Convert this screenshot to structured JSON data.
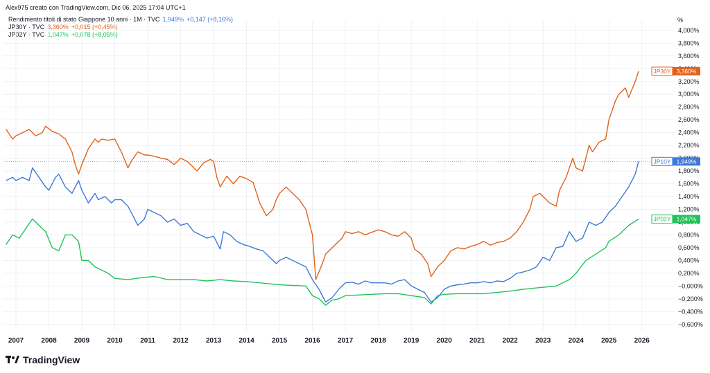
{
  "header": {
    "creator": "Alex975 creato con TradingView.com, Dic 06, 2025 17:04 UTC+1"
  },
  "legend": [
    {
      "label": "Rendimento titoli di stato Giappone 10 anni · 1M · TVC",
      "value": "1,949%",
      "change": "+0,147 (+8,16%)",
      "color": "#3d78d8"
    },
    {
      "label": "JP30Y · TVC",
      "value": "3,360%",
      "change": "+0,015 (+0,45%)",
      "color": "#e2611a"
    },
    {
      "label": "JP02Y · TVC",
      "value": "1,047%",
      "change": "+0,078 (+8,05%)",
      "color": "#22c25a"
    }
  ],
  "axis": {
    "unit": "%"
  },
  "branding": {
    "name": "TradingView"
  },
  "colors": {
    "grid": "#eef0f3",
    "axis_text": "#131722",
    "jp10y": "#3d78d8",
    "jp30y": "#e2611a",
    "jp02y": "#22c25a"
  },
  "chart_data": {
    "type": "line",
    "title": "Rendimento titoli di stato Giappone 10 anni · 1M · TVC",
    "xlabel": "",
    "ylabel": "%",
    "xlim": [
      2006.6,
      2026.3
    ],
    "ylim": [
      -0.7,
      4.15
    ],
    "grid": true,
    "legend_position": "top-left",
    "x_ticks": [
      "2007",
      "2008",
      "2009",
      "2010",
      "2011",
      "2012",
      "2013",
      "2014",
      "2015",
      "2016",
      "2017",
      "2018",
      "2019",
      "2020",
      "2021",
      "2022",
      "2023",
      "2024",
      "2025",
      "2026"
    ],
    "x_tick_values": [
      2007,
      2008,
      2009,
      2010,
      2011,
      2012,
      2013,
      2014,
      2015,
      2016,
      2017,
      2018,
      2019,
      2020,
      2021,
      2022,
      2023,
      2024,
      2025,
      2026
    ],
    "y_ticks": [
      "−0,600%",
      "−0,400%",
      "−0,200%",
      "−0,000%",
      "0,200%",
      "0,400%",
      "0,600%",
      "0,800%",
      "1,000%",
      "1,200%",
      "1,400%",
      "1,600%",
      "1,800%",
      "2,000%",
      "2,200%",
      "2,400%",
      "2,600%",
      "2,800%",
      "3,000%",
      "3,200%",
      "3,400%",
      "3,600%",
      "3,800%",
      "4,000%"
    ],
    "y_tick_values": [
      -0.6,
      -0.4,
      -0.2,
      0.0,
      0.2,
      0.4,
      0.6,
      0.8,
      1.0,
      1.2,
      1.4,
      1.6,
      1.8,
      2.0,
      2.2,
      2.4,
      2.6,
      2.8,
      3.0,
      3.2,
      3.4,
      3.6,
      3.8,
      4.0
    ],
    "series": [
      {
        "name": "JP30Y",
        "tag": "JP30Y",
        "last_label": "3,360%",
        "last": 3.36,
        "color": "#e2611a",
        "x": [
          2006.7,
          2006.9,
          2007.0,
          2007.2,
          2007.4,
          2007.6,
          2007.8,
          2007.9,
          2008.1,
          2008.3,
          2008.5,
          2008.7,
          2008.8,
          2008.9,
          2009.0,
          2009.2,
          2009.4,
          2009.5,
          2009.6,
          2009.8,
          2010.0,
          2010.2,
          2010.4,
          2010.5,
          2010.7,
          2010.9,
          2011.0,
          2011.2,
          2011.4,
          2011.6,
          2011.8,
          2012.0,
          2012.2,
          2012.4,
          2012.5,
          2012.7,
          2012.9,
          2013.0,
          2013.1,
          2013.2,
          2013.4,
          2013.6,
          2013.8,
          2014.0,
          2014.2,
          2014.4,
          2014.6,
          2014.8,
          2014.9,
          2015.0,
          2015.2,
          2015.4,
          2015.6,
          2015.8,
          2016.0,
          2016.1,
          2016.3,
          2016.4,
          2016.6,
          2016.8,
          2016.9,
          2017.0,
          2017.2,
          2017.4,
          2017.6,
          2017.8,
          2018.0,
          2018.2,
          2018.4,
          2018.6,
          2018.8,
          2019.0,
          2019.1,
          2019.3,
          2019.5,
          2019.6,
          2019.8,
          2020.0,
          2020.2,
          2020.4,
          2020.6,
          2020.8,
          2021.0,
          2021.2,
          2021.4,
          2021.6,
          2021.8,
          2022.0,
          2022.2,
          2022.4,
          2022.6,
          2022.7,
          2022.9,
          2023.0,
          2023.2,
          2023.4,
          2023.5,
          2023.7,
          2023.8,
          2023.9,
          2024.0,
          2024.2,
          2024.4,
          2024.5,
          2024.7,
          2024.9,
          2025.0,
          2025.2,
          2025.3,
          2025.5,
          2025.6,
          2025.8,
          2025.9
        ],
        "values": [
          2.45,
          2.3,
          2.35,
          2.4,
          2.45,
          2.35,
          2.4,
          2.5,
          2.42,
          2.38,
          2.3,
          2.1,
          1.9,
          1.75,
          1.9,
          2.15,
          2.3,
          2.25,
          2.3,
          2.28,
          2.3,
          2.1,
          1.85,
          1.95,
          2.1,
          2.05,
          2.05,
          2.03,
          2.0,
          1.98,
          1.9,
          2.0,
          1.95,
          1.85,
          1.8,
          1.93,
          1.98,
          1.95,
          1.7,
          1.55,
          1.72,
          1.6,
          1.72,
          1.68,
          1.62,
          1.3,
          1.1,
          1.2,
          1.35,
          1.45,
          1.55,
          1.45,
          1.35,
          1.2,
          0.8,
          0.1,
          0.35,
          0.5,
          0.6,
          0.7,
          0.75,
          0.85,
          0.82,
          0.85,
          0.8,
          0.84,
          0.88,
          0.85,
          0.8,
          0.78,
          0.85,
          0.75,
          0.58,
          0.5,
          0.35,
          0.15,
          0.3,
          0.4,
          0.55,
          0.6,
          0.58,
          0.62,
          0.65,
          0.7,
          0.64,
          0.68,
          0.7,
          0.75,
          0.85,
          1.0,
          1.2,
          1.4,
          1.45,
          1.4,
          1.3,
          1.25,
          1.5,
          1.7,
          1.85,
          2.0,
          1.85,
          1.8,
          2.2,
          2.1,
          2.25,
          2.3,
          2.6,
          2.9,
          3.0,
          3.1,
          2.95,
          3.2,
          3.36
        ]
      },
      {
        "name": "Rendimento titoli di stato Giappone 10 anni",
        "tag": "JP10Y",
        "last_label": "1,949%",
        "last": 1.949,
        "color": "#3d78d8",
        "x": [
          2006.7,
          2006.9,
          2007.0,
          2007.2,
          2007.4,
          2007.5,
          2007.7,
          2007.9,
          2008.0,
          2008.2,
          2008.3,
          2008.5,
          2008.7,
          2008.9,
          2009.0,
          2009.2,
          2009.4,
          2009.5,
          2009.7,
          2009.9,
          2010.0,
          2010.2,
          2010.4,
          2010.5,
          2010.7,
          2010.9,
          2011.0,
          2011.2,
          2011.4,
          2011.6,
          2011.8,
          2012.0,
          2012.2,
          2012.4,
          2012.6,
          2012.8,
          2013.0,
          2013.2,
          2013.3,
          2013.5,
          2013.7,
          2013.9,
          2014.1,
          2014.3,
          2014.5,
          2014.7,
          2014.9,
          2015.0,
          2015.2,
          2015.4,
          2015.6,
          2015.8,
          2016.0,
          2016.2,
          2016.4,
          2016.6,
          2016.8,
          2017.0,
          2017.2,
          2017.4,
          2017.6,
          2017.8,
          2018.0,
          2018.2,
          2018.4,
          2018.6,
          2018.8,
          2019.0,
          2019.2,
          2019.4,
          2019.6,
          2019.8,
          2020.0,
          2020.2,
          2020.4,
          2020.6,
          2020.8,
          2021.0,
          2021.2,
          2021.4,
          2021.6,
          2021.8,
          2022.0,
          2022.2,
          2022.4,
          2022.6,
          2022.8,
          2023.0,
          2023.2,
          2023.4,
          2023.6,
          2023.8,
          2024.0,
          2024.2,
          2024.4,
          2024.6,
          2024.8,
          2025.0,
          2025.2,
          2025.4,
          2025.6,
          2025.8,
          2025.9
        ],
        "values": [
          1.65,
          1.7,
          1.65,
          1.7,
          1.65,
          1.85,
          1.7,
          1.55,
          1.5,
          1.7,
          1.75,
          1.55,
          1.45,
          1.65,
          1.5,
          1.3,
          1.45,
          1.35,
          1.4,
          1.3,
          1.35,
          1.35,
          1.25,
          1.15,
          0.95,
          1.05,
          1.2,
          1.15,
          1.1,
          1.0,
          1.05,
          0.95,
          0.98,
          0.85,
          0.8,
          0.75,
          0.78,
          0.58,
          0.85,
          0.8,
          0.7,
          0.65,
          0.62,
          0.58,
          0.55,
          0.45,
          0.35,
          0.4,
          0.45,
          0.4,
          0.35,
          0.3,
          0.1,
          -0.05,
          -0.25,
          -0.18,
          -0.05,
          0.05,
          0.06,
          0.03,
          0.08,
          0.05,
          0.05,
          0.05,
          0.03,
          0.08,
          0.1,
          0.0,
          -0.05,
          -0.1,
          -0.25,
          -0.18,
          -0.05,
          0.0,
          0.02,
          0.03,
          0.05,
          0.05,
          0.07,
          0.05,
          0.08,
          0.07,
          0.12,
          0.2,
          0.22,
          0.25,
          0.3,
          0.45,
          0.4,
          0.6,
          0.62,
          0.85,
          0.7,
          0.75,
          1.0,
          0.95,
          1.0,
          1.15,
          1.25,
          1.4,
          1.55,
          1.75,
          1.949
        ]
      },
      {
        "name": "JP02Y",
        "tag": "JP02Y",
        "last_label": "1,047%",
        "last": 1.047,
        "color": "#22c25a",
        "x": [
          2006.7,
          2006.9,
          2007.1,
          2007.3,
          2007.5,
          2007.7,
          2007.9,
          2008.1,
          2008.3,
          2008.5,
          2008.7,
          2008.9,
          2009.0,
          2009.2,
          2009.4,
          2009.6,
          2009.8,
          2010.0,
          2010.4,
          2010.8,
          2011.2,
          2011.6,
          2012.0,
          2012.4,
          2012.8,
          2013.2,
          2013.6,
          2014.0,
          2014.4,
          2014.8,
          2015.0,
          2015.4,
          2015.8,
          2016.0,
          2016.2,
          2016.4,
          2016.6,
          2016.8,
          2017.0,
          2017.4,
          2017.8,
          2018.2,
          2018.6,
          2019.0,
          2019.4,
          2019.6,
          2019.8,
          2020.0,
          2020.4,
          2020.8,
          2021.2,
          2021.6,
          2022.0,
          2022.4,
          2022.8,
          2023.0,
          2023.4,
          2023.8,
          2024.0,
          2024.3,
          2024.6,
          2024.9,
          2025.0,
          2025.3,
          2025.6,
          2025.9
        ],
        "values": [
          0.65,
          0.8,
          0.75,
          0.9,
          1.05,
          0.95,
          0.85,
          0.6,
          0.55,
          0.8,
          0.8,
          0.7,
          0.4,
          0.4,
          0.3,
          0.25,
          0.2,
          0.12,
          0.1,
          0.13,
          0.15,
          0.1,
          0.1,
          0.1,
          0.08,
          0.1,
          0.08,
          0.07,
          0.05,
          0.03,
          0.02,
          0.01,
          0.0,
          -0.15,
          -0.2,
          -0.3,
          -0.22,
          -0.2,
          -0.15,
          -0.14,
          -0.13,
          -0.12,
          -0.12,
          -0.15,
          -0.18,
          -0.28,
          -0.15,
          -0.13,
          -0.12,
          -0.12,
          -0.12,
          -0.1,
          -0.08,
          -0.05,
          -0.03,
          -0.02,
          0.0,
          0.1,
          0.2,
          0.4,
          0.5,
          0.6,
          0.7,
          0.8,
          0.95,
          1.047
        ]
      }
    ]
  }
}
